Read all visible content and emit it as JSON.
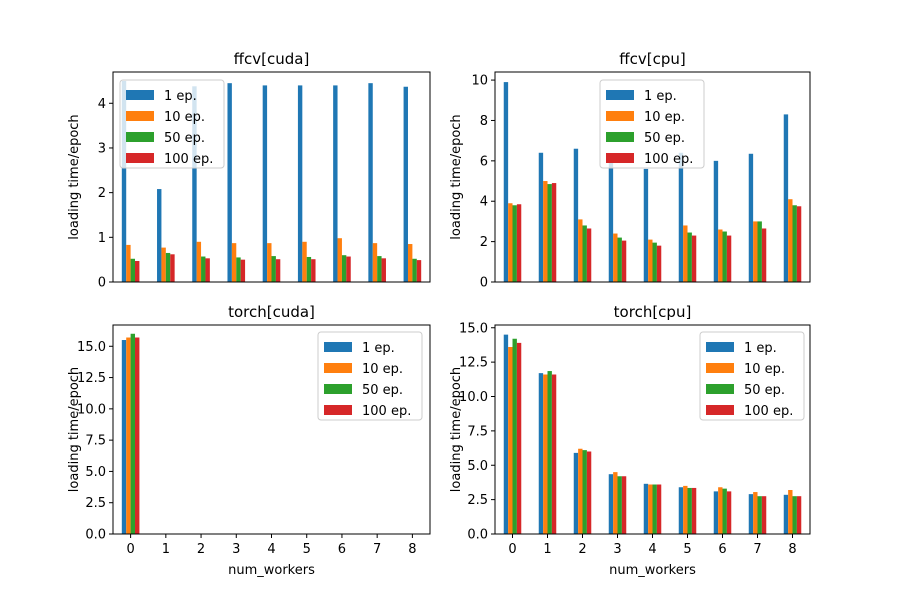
{
  "colors": {
    "1 ep.": "#1f77b4",
    "10 ep.": "#ff7f0e",
    "50 ep.": "#2ca02c",
    "100 ep.": "#d62728"
  },
  "chart_data": [
    {
      "type": "bar",
      "title": "ffcv[cuda]",
      "xlabel": "",
      "ylabel": "loading time/epoch",
      "categories": [
        "0",
        "1",
        "2",
        "3",
        "4",
        "5",
        "6",
        "7",
        "8"
      ],
      "show_xticks": false,
      "ylim": [
        0,
        4.7
      ],
      "yticks": [
        0,
        1,
        2,
        3,
        4
      ],
      "ytick_labels": [
        "0",
        "1",
        "2",
        "3",
        "4"
      ],
      "legend": "upper-left",
      "grid": false,
      "series": [
        {
          "name": "1 ep.",
          "values": [
            4.5,
            2.08,
            4.38,
            4.45,
            4.4,
            4.4,
            4.4,
            4.45,
            4.37
          ]
        },
        {
          "name": "10 ep.",
          "values": [
            0.83,
            0.77,
            0.9,
            0.87,
            0.87,
            0.9,
            0.98,
            0.87,
            0.85
          ]
        },
        {
          "name": "50 ep.",
          "values": [
            0.52,
            0.65,
            0.57,
            0.55,
            0.58,
            0.56,
            0.6,
            0.58,
            0.52
          ]
        },
        {
          "name": "100 ep.",
          "values": [
            0.47,
            0.62,
            0.53,
            0.5,
            0.51,
            0.51,
            0.57,
            0.53,
            0.49
          ]
        }
      ]
    },
    {
      "type": "bar",
      "title": "ffcv[cpu]",
      "xlabel": "",
      "ylabel": "loading time/epoch",
      "categories": [
        "0",
        "1",
        "2",
        "3",
        "4",
        "5",
        "6",
        "7",
        "8"
      ],
      "show_xticks": false,
      "ylim": [
        0,
        10.4
      ],
      "yticks": [
        0,
        2,
        4,
        6,
        8,
        10
      ],
      "ytick_labels": [
        "0",
        "2",
        "4",
        "6",
        "8",
        "10"
      ],
      "legend": "upper-center",
      "grid": false,
      "series": [
        {
          "name": "1 ep.",
          "values": [
            9.9,
            6.4,
            6.6,
            6.0,
            5.6,
            6.4,
            6.0,
            6.35,
            8.3
          ]
        },
        {
          "name": "10 ep.",
          "values": [
            3.9,
            5.0,
            3.1,
            2.4,
            2.1,
            2.8,
            2.6,
            3.0,
            4.1
          ]
        },
        {
          "name": "50 ep.",
          "values": [
            3.8,
            4.85,
            2.8,
            2.2,
            1.95,
            2.45,
            2.5,
            3.0,
            3.8
          ]
        },
        {
          "name": "100 ep.",
          "values": [
            3.85,
            4.9,
            2.65,
            2.05,
            1.8,
            2.3,
            2.3,
            2.65,
            3.75
          ]
        }
      ]
    },
    {
      "type": "bar",
      "title": "torch[cuda]",
      "xlabel": "num_workers",
      "ylabel": "loading time/epoch",
      "categories": [
        "0",
        "1",
        "2",
        "3",
        "4",
        "5",
        "6",
        "7",
        "8"
      ],
      "show_xticks": true,
      "ylim": [
        0,
        16.7
      ],
      "yticks": [
        0,
        2.5,
        5,
        7.5,
        10,
        12.5,
        15
      ],
      "ytick_labels": [
        "0.0",
        "2.5",
        "5.0",
        "7.5",
        "10.0",
        "12.5",
        "15.0"
      ],
      "legend": "upper-right",
      "grid": false,
      "series": [
        {
          "name": "1 ep.",
          "values": [
            15.5,
            null,
            null,
            null,
            null,
            null,
            null,
            null,
            null
          ]
        },
        {
          "name": "10 ep.",
          "values": [
            15.7,
            null,
            null,
            null,
            null,
            null,
            null,
            null,
            null
          ]
        },
        {
          "name": "50 ep.",
          "values": [
            16.0,
            null,
            null,
            null,
            null,
            null,
            null,
            null,
            null
          ]
        },
        {
          "name": "100 ep.",
          "values": [
            15.7,
            null,
            null,
            null,
            null,
            null,
            null,
            null,
            null
          ]
        }
      ]
    },
    {
      "type": "bar",
      "title": "torch[cpu]",
      "xlabel": "num_workers",
      "ylabel": "loading time/epoch",
      "categories": [
        "0",
        "1",
        "2",
        "3",
        "4",
        "5",
        "6",
        "7",
        "8"
      ],
      "show_xticks": true,
      "ylim": [
        0,
        15.2
      ],
      "yticks": [
        0,
        2.5,
        5,
        7.5,
        10,
        12.5,
        15
      ],
      "ytick_labels": [
        "0.0",
        "2.5",
        "5.0",
        "7.5",
        "10.0",
        "12.5",
        "15.0"
      ],
      "legend": "upper-right",
      "grid": false,
      "series": [
        {
          "name": "1 ep.",
          "values": [
            14.5,
            11.7,
            5.9,
            4.35,
            3.65,
            3.4,
            3.1,
            2.9,
            2.85
          ]
        },
        {
          "name": "10 ep.",
          "values": [
            13.6,
            11.6,
            6.2,
            4.5,
            3.6,
            3.5,
            3.4,
            3.05,
            3.2
          ]
        },
        {
          "name": "50 ep.",
          "values": [
            14.2,
            11.85,
            6.1,
            4.2,
            3.6,
            3.35,
            3.3,
            2.75,
            2.75
          ]
        },
        {
          "name": "100 ep.",
          "values": [
            13.9,
            11.6,
            6.0,
            4.2,
            3.6,
            3.35,
            3.1,
            2.75,
            2.75
          ]
        }
      ]
    }
  ]
}
